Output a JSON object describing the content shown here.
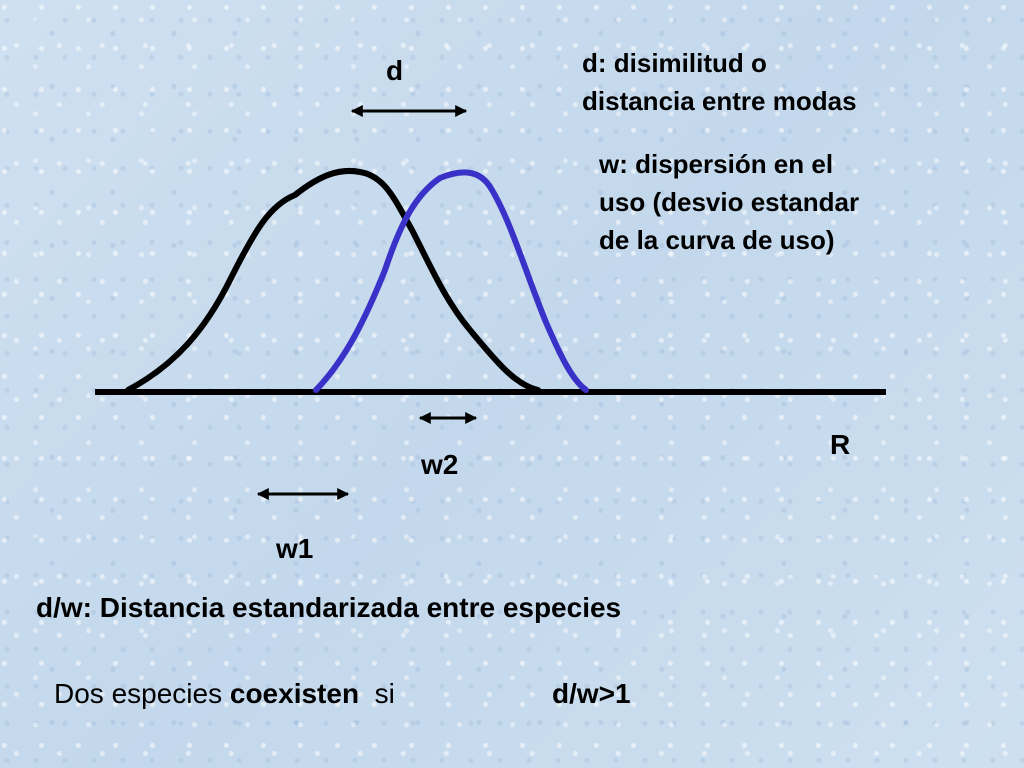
{
  "labels": {
    "d": "d",
    "w1": "w1",
    "w2": "w2",
    "R": "R"
  },
  "notes": {
    "d_definition": [
      "d: disimilitud o",
      "distancia entre modas"
    ],
    "w_definition": [
      "w: dispersión en el",
      "uso (desvio estandar",
      "de la curva de uso)"
    ]
  },
  "standardized_distance": "d/w: Distancia estandarizada entre especies",
  "coexistence": {
    "prefix": "Dos especies ",
    "keyword": "coexisten",
    "suffix": "  si",
    "condition": "d/w>1"
  },
  "colors": {
    "curve_species_1": "#000000",
    "curve_species_2": "#3a32c8",
    "axis": "#000000"
  }
}
